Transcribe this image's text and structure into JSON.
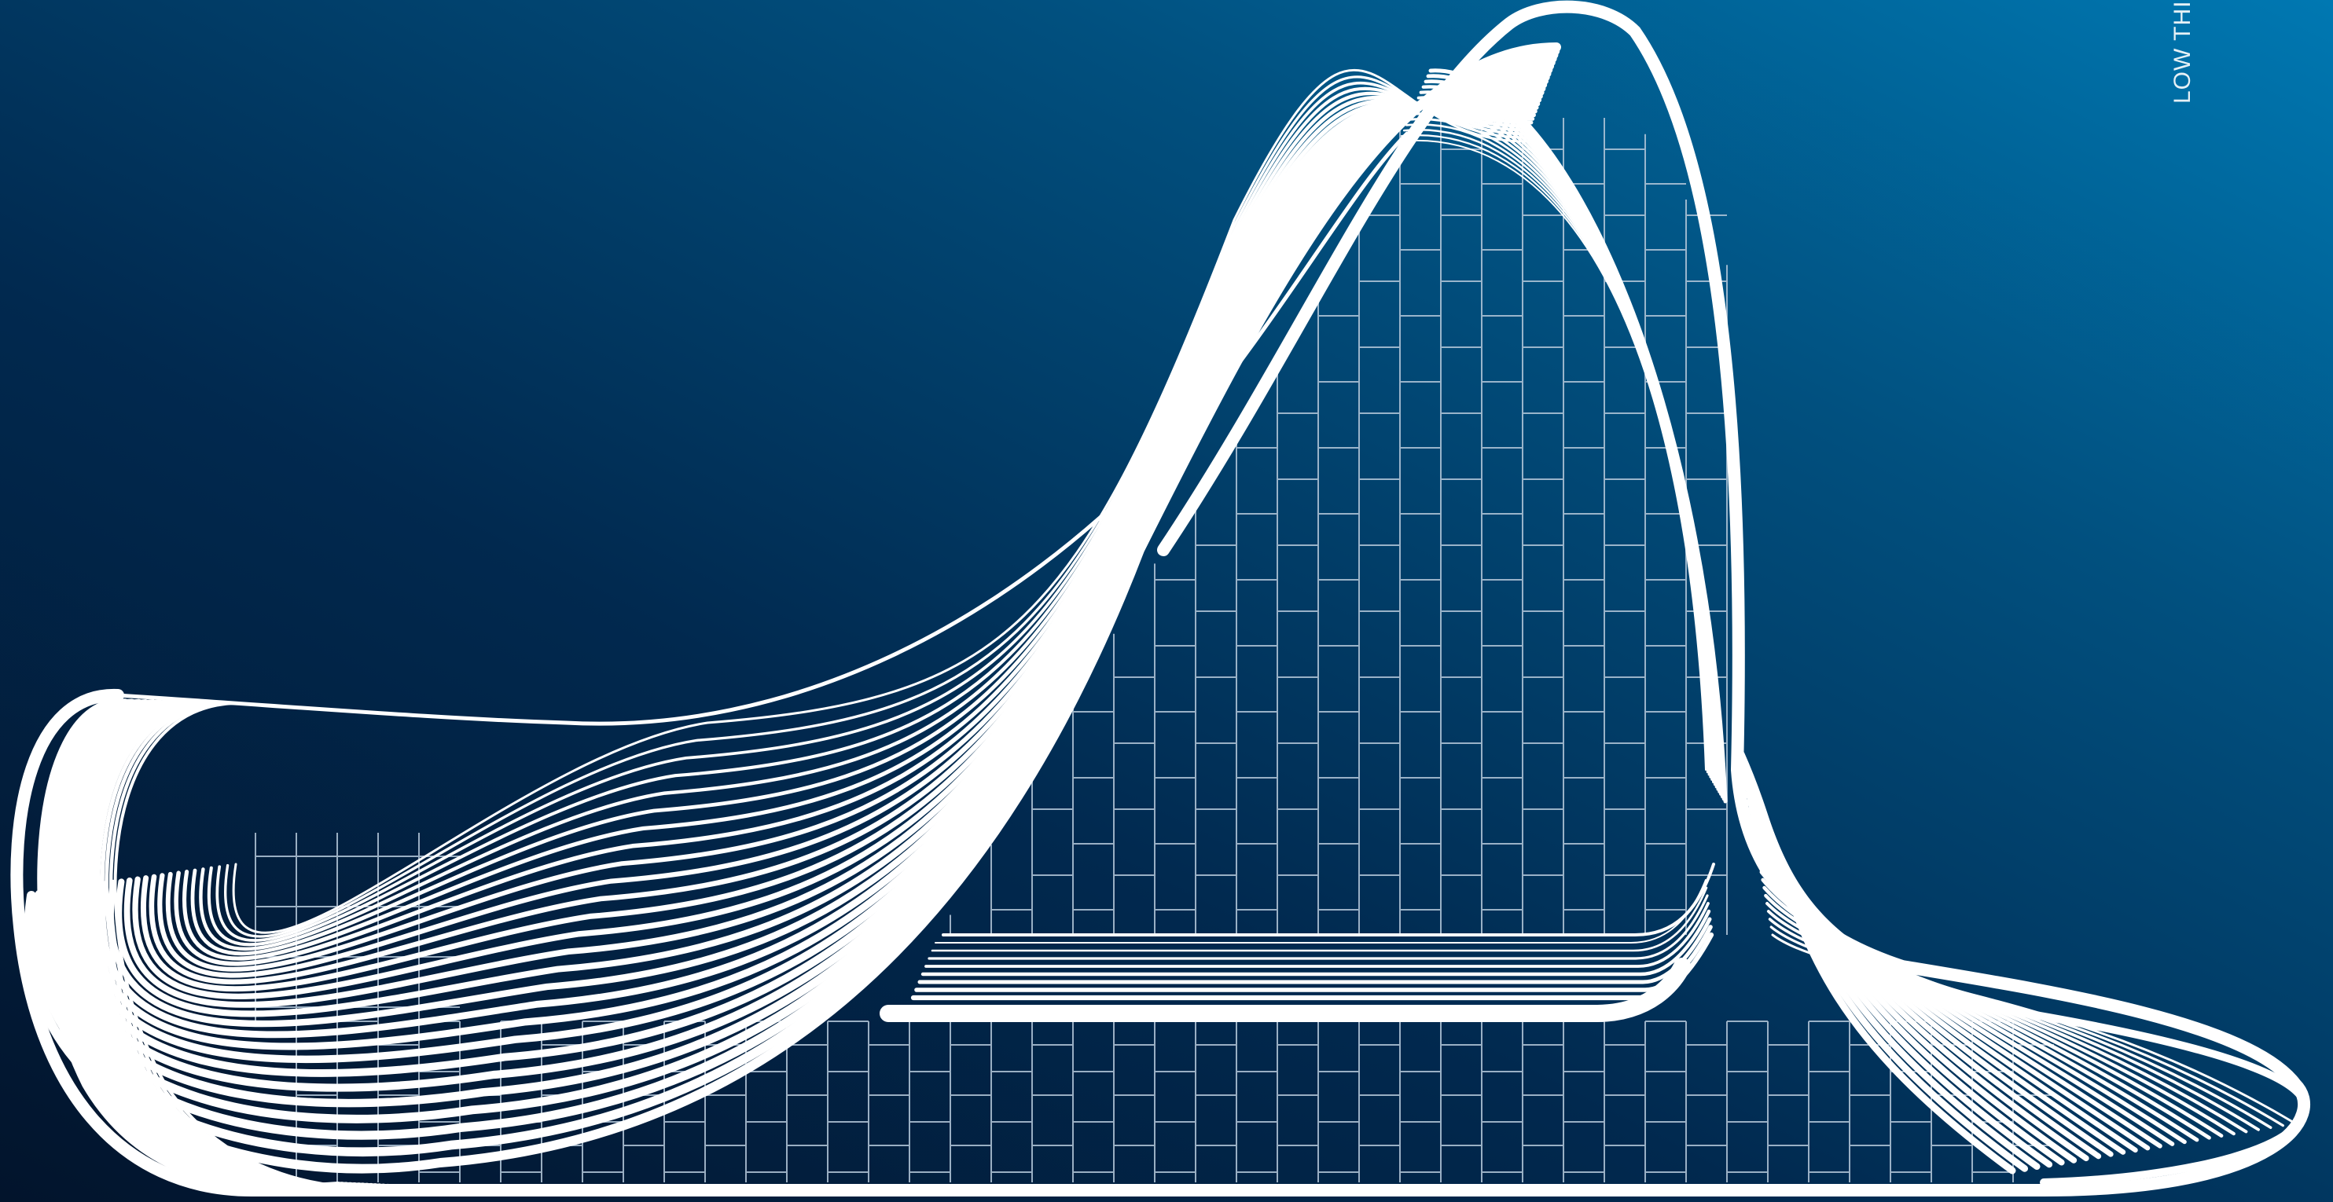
{
  "poster": {
    "vertical_text": "LOW THIC",
    "colors": {
      "background_dark": "#02142c",
      "background_mid": "#01426c",
      "background_light": "#0073ab",
      "line": "#ffffff",
      "grid_line": "#b5c8da"
    }
  }
}
